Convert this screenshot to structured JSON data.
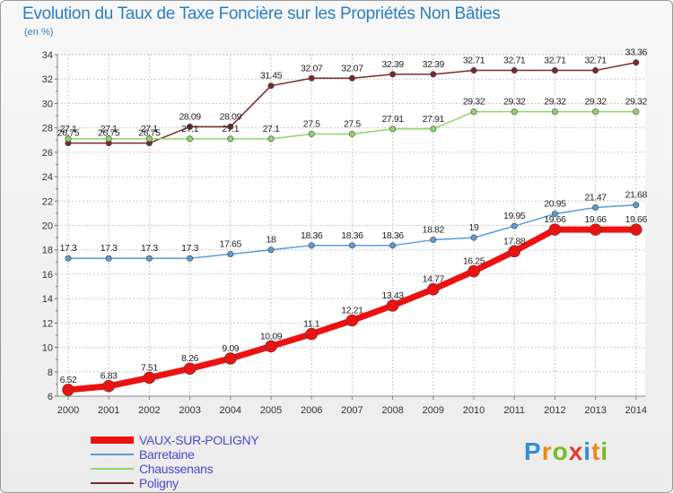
{
  "title": "Evolution du Taux de Taxe Foncière sur les Propriétés Non Bâties",
  "unit_label": "(en %)",
  "brand": {
    "text": "Proxiti",
    "letter_colors": [
      "#2f8fd8",
      "#e88a1a",
      "#7ab827",
      "#e23c2c",
      "#2f8fd8",
      "#e88a1a",
      "#7ab827"
    ]
  },
  "chart_data": {
    "type": "line",
    "title": "Evolution du Taux de Taxe Foncière sur les Propriétés Non Bâties",
    "ylabel": "(en %)",
    "xlabel": "",
    "ylim": [
      6,
      34
    ],
    "yticks": [
      6,
      8,
      10,
      12,
      14,
      16,
      18,
      20,
      22,
      24,
      26,
      28,
      30,
      32,
      34
    ],
    "grid": true,
    "legend_position": "bottom-left",
    "x": [
      "2000",
      "2001",
      "2002",
      "2003",
      "2004",
      "2005",
      "2006",
      "2007",
      "2008",
      "2009",
      "2010",
      "2011",
      "2012",
      "2013",
      "2014"
    ],
    "series": [
      {
        "name": "Poligny",
        "color": "#7a2a2a",
        "values": [
          26.75,
          26.75,
          26.75,
          28.09,
          28.09,
          31.45,
          32.07,
          32.07,
          32.39,
          32.39,
          32.71,
          32.71,
          32.71,
          32.71,
          33.36
        ],
        "labels": [
          "26.75",
          "26.75",
          "26.75",
          "28.09",
          "28.09",
          "31.45",
          "32.07",
          "32.07",
          "32.39",
          "32.39",
          "32.71",
          "32.71",
          "32.71",
          "32.71",
          "33.36"
        ]
      },
      {
        "name": "Chaussenans",
        "color": "#8fd46a",
        "values": [
          27.1,
          27.1,
          27.1,
          27.1,
          27.1,
          27.1,
          27.5,
          27.5,
          27.91,
          27.91,
          29.32,
          29.32,
          29.32,
          29.32,
          29.32
        ],
        "labels": [
          "27.1",
          "27.1",
          "27.1",
          "27.1",
          "27.1",
          "27.1",
          "27.5",
          "27.5",
          "27.91",
          "27.91",
          "29.32",
          "29.32",
          "29.32",
          "29.32",
          "29.32"
        ]
      },
      {
        "name": "Barretaine",
        "color": "#5b9bd5",
        "values": [
          17.3,
          17.3,
          17.3,
          17.3,
          17.65,
          18,
          18.36,
          18.36,
          18.36,
          18.82,
          19,
          19.95,
          20.95,
          21.47,
          21.68
        ],
        "labels": [
          "17.3",
          "17.3",
          "17.3",
          "17.3",
          "17.65",
          "18",
          "18.36",
          "18.36",
          "18.36",
          "18.82",
          "19",
          "19.95",
          "20.95",
          "21.47",
          "21.68"
        ]
      },
      {
        "name": "VAUX-SUR-POLIGNY",
        "color": "#ee1111",
        "values": [
          6.52,
          6.83,
          7.51,
          8.26,
          9.09,
          10.09,
          11.1,
          12.21,
          13.43,
          14.77,
          16.25,
          17.88,
          19.66,
          19.66,
          19.66
        ],
        "labels": [
          "6.52",
          "6.83",
          "7.51",
          "8.26",
          "9.09",
          "10.09",
          "11.1",
          "12.21",
          "13.43",
          "14.77",
          "16.25",
          "17.88",
          "19.66",
          "19.66",
          "19.66"
        ]
      }
    ],
    "legend_order": [
      "VAUX-SUR-POLIGNY",
      "Barretaine",
      "Chaussenans",
      "Poligny"
    ]
  }
}
